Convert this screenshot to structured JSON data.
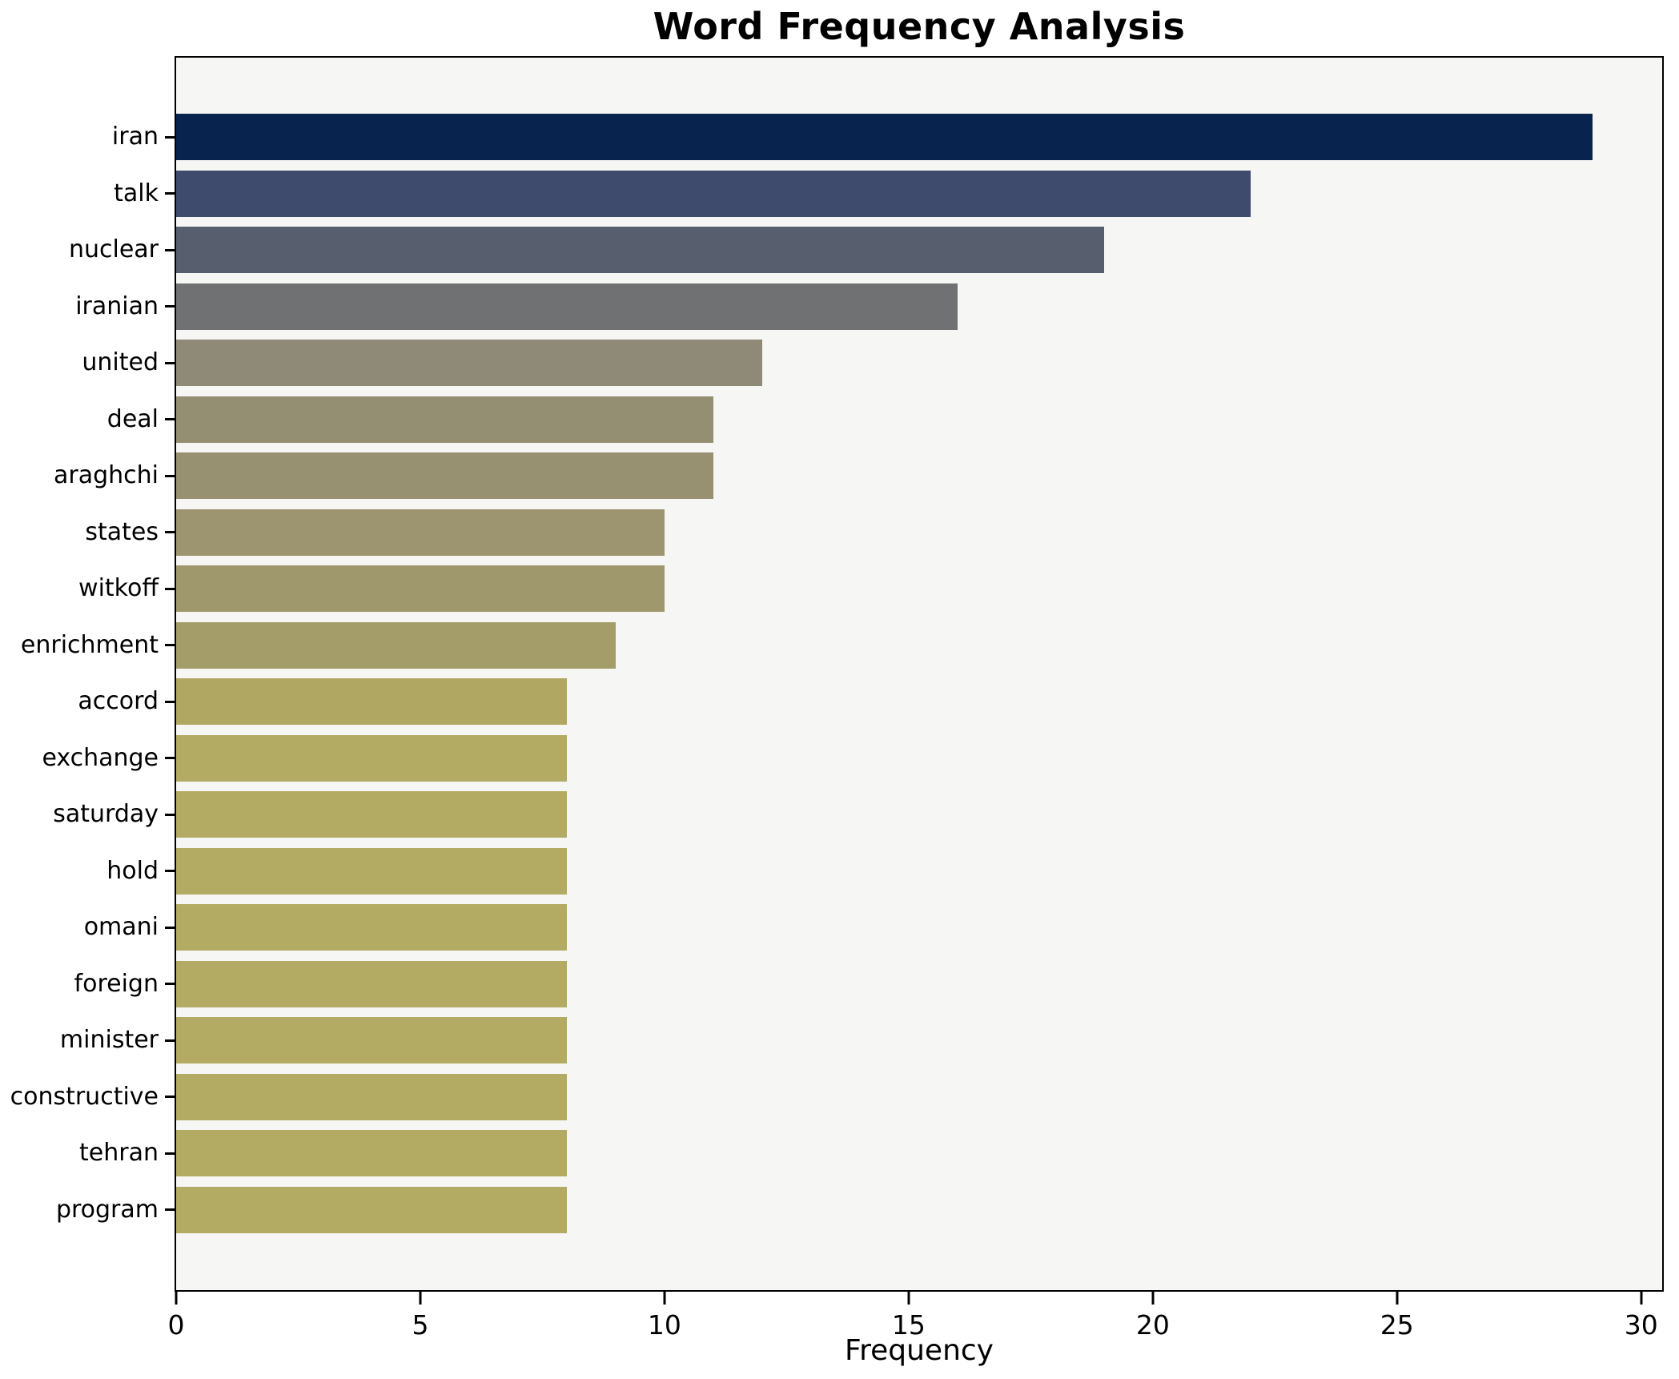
{
  "chart_data": {
    "type": "bar",
    "orientation": "horizontal",
    "title": "Word Frequency Analysis",
    "xlabel": "Frequency",
    "ylabel": "",
    "grid": false,
    "legend": null,
    "plot_background": "#f6f6f5",
    "spine_color": "#000000",
    "xlim": [
      0,
      30.43
    ],
    "xticks": [
      0,
      5,
      10,
      15,
      20,
      25,
      30
    ],
    "categories": [
      "iran",
      "talk",
      "nuclear",
      "iranian",
      "united",
      "deal",
      "araghchi",
      "states",
      "witkoff",
      "enrichment",
      "accord",
      "exchange",
      "saturday",
      "hold",
      "omani",
      "foreign",
      "minister",
      "constructive",
      "tehran",
      "program"
    ],
    "values": [
      29,
      22,
      19,
      16,
      12,
      11,
      11,
      10,
      10,
      9,
      8,
      8,
      8,
      8,
      8,
      8,
      8,
      8,
      8,
      8
    ],
    "bar_colors": [
      "#08234e",
      "#3e4b6c",
      "#575f6e",
      "#6f7172",
      "#8f8a77",
      "#948e73",
      "#979071",
      "#9c956f",
      "#9f986d",
      "#a49d6a",
      "#b0a763",
      "#b3aa64",
      "#b3aa64",
      "#b3aa64",
      "#b3aa64",
      "#b3aa64",
      "#b3aa64",
      "#b3aa64",
      "#b3aa64",
      "#b3aa64"
    ]
  }
}
